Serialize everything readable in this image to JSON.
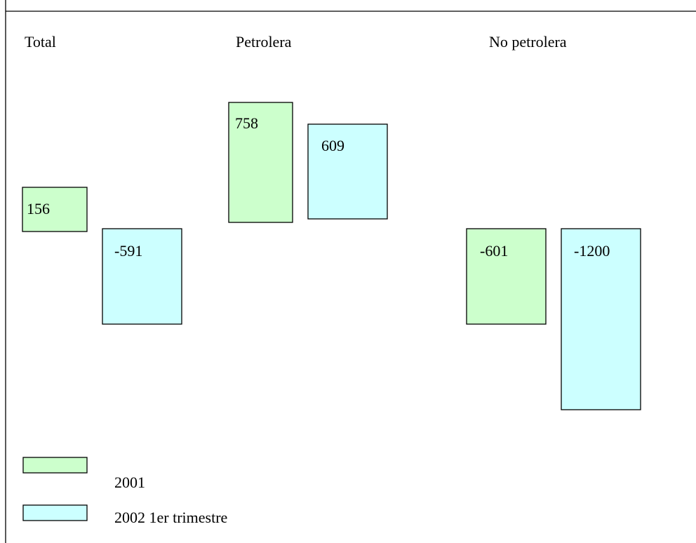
{
  "legend": [
    {
      "name": "2001",
      "color": "#ccffcc"
    },
    {
      "name": "2002 1er trimestre",
      "color": "#ccffff"
    }
  ],
  "groups": [
    {
      "label": "Total",
      "values": [
        156,
        -591
      ]
    },
    {
      "label": "Petrolera",
      "values": [
        758,
        609
      ]
    },
    {
      "label": "No petrolera",
      "values": [
        -601,
        -1200
      ]
    }
  ]
}
